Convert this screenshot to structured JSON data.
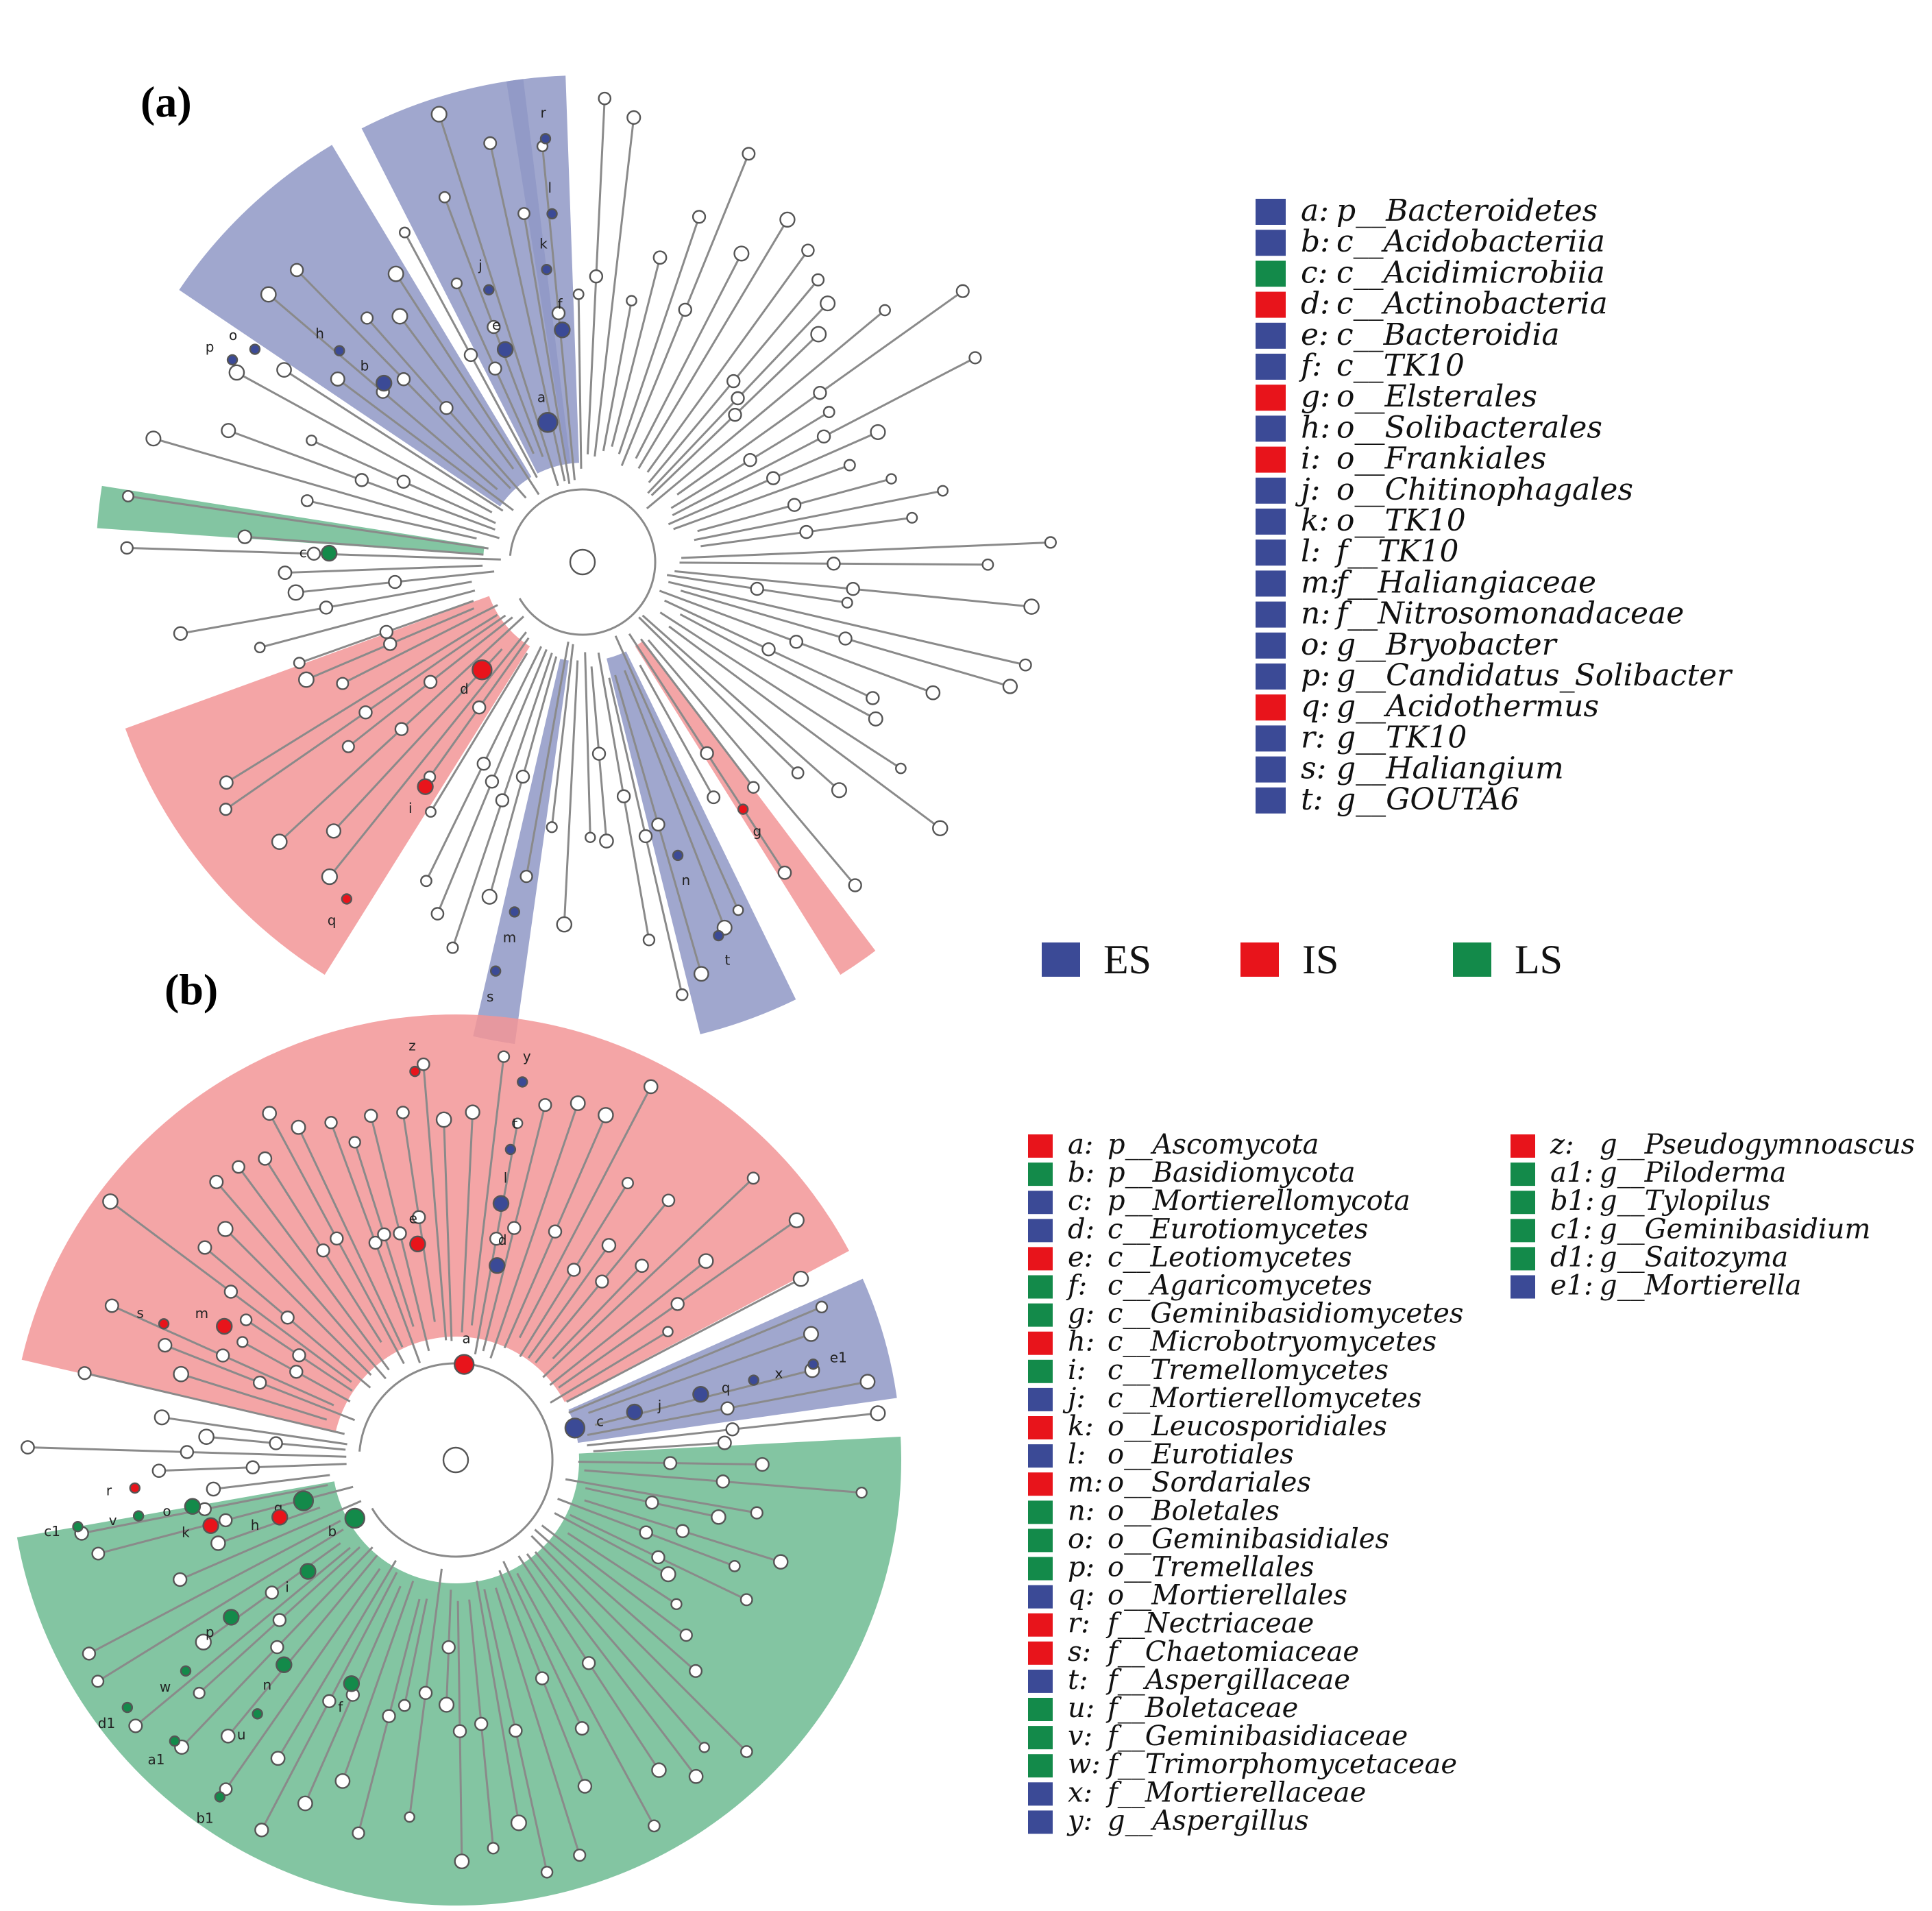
{
  "colors": {
    "ES": "#3b4a96",
    "IS": "#e8141b",
    "LS": "#138a4a"
  },
  "panel_a": {
    "label": "(a)",
    "legend": [
      {
        "key": "a:",
        "name": "p__Bacteroidetes",
        "group": "ES"
      },
      {
        "key": "b:",
        "name": "c__Acidobacteriia",
        "group": "ES"
      },
      {
        "key": "c:",
        "name": "c__Acidimicrobiia",
        "group": "LS"
      },
      {
        "key": "d:",
        "name": "c__Actinobacteria",
        "group": "IS"
      },
      {
        "key": "e:",
        "name": "c__Bacteroidia",
        "group": "ES"
      },
      {
        "key": "f:",
        "name": "c__TK10",
        "group": "ES"
      },
      {
        "key": "g:",
        "name": "o__Elsterales",
        "group": "IS"
      },
      {
        "key": "h:",
        "name": "o__Solibacterales",
        "group": "ES"
      },
      {
        "key": "i:",
        "name": "o__Frankiales",
        "group": "IS"
      },
      {
        "key": "j:",
        "name": "o__Chitinophagales",
        "group": "ES"
      },
      {
        "key": "k:",
        "name": "o__TK10",
        "group": "ES"
      },
      {
        "key": "l:",
        "name": "f__TK10",
        "group": "ES"
      },
      {
        "key": "m:",
        "name": "f__Haliangiaceae",
        "group": "ES"
      },
      {
        "key": "n:",
        "name": "f__Nitrosomonadaceae",
        "group": "ES"
      },
      {
        "key": "o:",
        "name": "g__Bryobacter",
        "group": "ES"
      },
      {
        "key": "p:",
        "name": "g__Candidatus_Solibacter",
        "group": "ES"
      },
      {
        "key": "q:",
        "name": "g__Acidothermus",
        "group": "IS"
      },
      {
        "key": "r:",
        "name": "g__TK10",
        "group": "ES"
      },
      {
        "key": "s:",
        "name": "g__Haliangium",
        "group": "ES"
      },
      {
        "key": "t:",
        "name": "g__GOUTA6",
        "group": "ES"
      }
    ]
  },
  "groups_legend": [
    {
      "name": "ES",
      "group": "ES"
    },
    {
      "name": "IS",
      "group": "IS"
    },
    {
      "name": "LS",
      "group": "LS"
    }
  ],
  "panel_b": {
    "label": "(b)",
    "legend_col1": [
      {
        "key": "a:",
        "name": "p__Ascomycota",
        "group": "IS"
      },
      {
        "key": "b:",
        "name": "p__Basidiomycota",
        "group": "LS"
      },
      {
        "key": "c:",
        "name": "p__Mortierellomycota",
        "group": "ES"
      },
      {
        "key": "d:",
        "name": "c__Eurotiomycetes",
        "group": "ES"
      },
      {
        "key": "e:",
        "name": "c__Leotiomycetes",
        "group": "IS"
      },
      {
        "key": "f:",
        "name": "c__Agaricomycetes",
        "group": "LS"
      },
      {
        "key": "g:",
        "name": "c__Geminibasidiomycetes",
        "group": "LS"
      },
      {
        "key": "h:",
        "name": "c__Microbotryomycetes",
        "group": "IS"
      },
      {
        "key": "i:",
        "name": "c__Tremellomycetes",
        "group": "LS"
      },
      {
        "key": "j:",
        "name": "c__Mortierellomycetes",
        "group": "ES"
      },
      {
        "key": "k:",
        "name": "o__Leucosporidiales",
        "group": "IS"
      },
      {
        "key": "l:",
        "name": "o__Eurotiales",
        "group": "ES"
      },
      {
        "key": "m:",
        "name": "o__Sordariales",
        "group": "IS"
      },
      {
        "key": "n:",
        "name": "o__Boletales",
        "group": "LS"
      },
      {
        "key": "o:",
        "name": "o__Geminibasidiales",
        "group": "LS"
      },
      {
        "key": "p:",
        "name": "o__Tremellales",
        "group": "LS"
      },
      {
        "key": "q:",
        "name": "o__Mortierellales",
        "group": "ES"
      },
      {
        "key": "r:",
        "name": "f__Nectriaceae",
        "group": "IS"
      },
      {
        "key": "s:",
        "name": "f__Chaetomiaceae",
        "group": "IS"
      },
      {
        "key": "t:",
        "name": "f__Aspergillaceae",
        "group": "ES"
      },
      {
        "key": "u:",
        "name": "f__Boletaceae",
        "group": "LS"
      },
      {
        "key": "v:",
        "name": "f__Geminibasidiaceae",
        "group": "LS"
      },
      {
        "key": "w:",
        "name": "f__Trimorphomycetaceae",
        "group": "LS"
      },
      {
        "key": "x:",
        "name": "f__Mortierellaceae",
        "group": "ES"
      },
      {
        "key": "y:",
        "name": "g__Aspergillus",
        "group": "ES"
      }
    ],
    "legend_col2": [
      {
        "key": "z:",
        "name": "g__Pseudogymnoascus",
        "group": "IS"
      },
      {
        "key": "a1:",
        "name": "g__Piloderma",
        "group": "LS"
      },
      {
        "key": "b1:",
        "name": "g__Tylopilus",
        "group": "LS"
      },
      {
        "key": "c1:",
        "name": "g__Geminibasidium",
        "group": "LS"
      },
      {
        "key": "d1:",
        "name": "g__Saitozyma",
        "group": "LS"
      },
      {
        "key": "e1:",
        "name": "g__Mortierella",
        "group": "ES"
      }
    ]
  },
  "tree_a": {
    "sectors": [
      {
        "group": "ES",
        "a1": -121,
        "a2": -146,
        "label": "bh-sector"
      },
      {
        "group": "ES",
        "a1": -97,
        "a2": -117,
        "label": "a-sector"
      },
      {
        "group": "ES",
        "a1": -92,
        "a2": -99,
        "label": "r-sector"
      },
      {
        "group": "LS",
        "a1": -176,
        "a2": -171,
        "label": "c-sector"
      },
      {
        "group": "IS",
        "a1": 122,
        "a2": 160,
        "label": "d-sector"
      },
      {
        "group": "IS",
        "a1": 53,
        "a2": 58,
        "label": "g-sector"
      },
      {
        "group": "ES",
        "a1": 64,
        "a2": 76,
        "label": "n-sector"
      },
      {
        "group": "ES",
        "a1": 98,
        "a2": 103,
        "label": "m-sector"
      }
    ],
    "markers": [
      {
        "key": "a",
        "ang": -104,
        "r": 210,
        "group": "ES"
      },
      {
        "key": "b",
        "ang": -138,
        "r": 390,
        "group": "ES"
      },
      {
        "key": "c",
        "ang": -178,
        "r": 370,
        "group": "LS"
      },
      {
        "key": "d",
        "ang": 133,
        "r": 215,
        "group": "IS"
      },
      {
        "key": "e",
        "ang": -110,
        "r": 330,
        "group": "ES"
      },
      {
        "key": "f",
        "ang": -95,
        "r": 340,
        "group": "ES"
      },
      {
        "key": "g",
        "ang": 57,
        "r": 430,
        "group": "IS"
      },
      {
        "key": "h",
        "ang": -139,
        "r": 470,
        "group": "ES"
      },
      {
        "key": "i",
        "ang": 125,
        "r": 400,
        "group": "IS"
      },
      {
        "key": "j",
        "ang": -109,
        "r": 420,
        "group": "ES"
      },
      {
        "key": "k",
        "ang": -97,
        "r": 430,
        "group": "ES"
      },
      {
        "key": "l",
        "ang": -95,
        "r": 510,
        "group": "ES"
      },
      {
        "key": "m",
        "ang": 101,
        "r": 520,
        "group": "ES"
      },
      {
        "key": "n",
        "ang": 72,
        "r": 450,
        "group": "ES"
      },
      {
        "key": "o",
        "ang": -147,
        "r": 570,
        "group": "ES"
      },
      {
        "key": "p",
        "ang": -150,
        "r": 590,
        "group": "ES"
      },
      {
        "key": "q",
        "ang": 125,
        "r": 600,
        "group": "IS"
      },
      {
        "key": "r",
        "ang": -95,
        "r": 620,
        "group": "ES"
      },
      {
        "key": "s",
        "ang": 102,
        "r": 610,
        "group": "ES"
      },
      {
        "key": "t",
        "ang": 70,
        "r": 580,
        "group": "ES"
      }
    ]
  },
  "tree_b": {
    "sectors": [
      {
        "group": "IS",
        "a1": -167,
        "a2": -28,
        "label": "a-sector"
      },
      {
        "group": "ES",
        "a1": -8,
        "a2": -24,
        "label": "c-sector"
      },
      {
        "group": "LS",
        "a1": -3,
        "a2": 170,
        "label": "b-sector"
      }
    ],
    "markers": [
      {
        "key": "a",
        "ang": -85,
        "r": 140,
        "group": "IS"
      },
      {
        "key": "b",
        "ang": 150,
        "r": 170,
        "group": "LS"
      },
      {
        "key": "c",
        "ang": -15,
        "r": 180,
        "group": "ES"
      },
      {
        "key": "d",
        "ang": -78,
        "r": 290,
        "group": "ES"
      },
      {
        "key": "e",
        "ang": -100,
        "r": 320,
        "group": "IS"
      },
      {
        "key": "f",
        "ang": 115,
        "r": 360,
        "group": "LS"
      },
      {
        "key": "g",
        "ang": 165,
        "r": 230,
        "group": "LS"
      },
      {
        "key": "h",
        "ang": 162,
        "r": 270,
        "group": "IS"
      },
      {
        "key": "i",
        "ang": 143,
        "r": 270,
        "group": "LS"
      },
      {
        "key": "j",
        "ang": -15,
        "r": 270,
        "group": "ES"
      },
      {
        "key": "k",
        "ang": 165,
        "r": 370,
        "group": "IS"
      },
      {
        "key": "l",
        "ang": -80,
        "r": 380,
        "group": "ES"
      },
      {
        "key": "m",
        "ang": -150,
        "r": 390,
        "group": "IS"
      },
      {
        "key": "n",
        "ang": 130,
        "r": 390,
        "group": "LS"
      },
      {
        "key": "o",
        "ang": 170,
        "r": 390,
        "group": "LS"
      },
      {
        "key": "p",
        "ang": 145,
        "r": 400,
        "group": "LS"
      },
      {
        "key": "q",
        "ang": -15,
        "r": 370,
        "group": "ES"
      },
      {
        "key": "r",
        "ang": 175,
        "r": 470,
        "group": "IS"
      },
      {
        "key": "s",
        "ang": -155,
        "r": 470,
        "group": "IS"
      },
      {
        "key": "t",
        "ang": -80,
        "r": 460,
        "group": "ES"
      },
      {
        "key": "u",
        "ang": 128,
        "r": 470,
        "group": "LS"
      },
      {
        "key": "v",
        "ang": 170,
        "r": 470,
        "group": "LS"
      },
      {
        "key": "w",
        "ang": 142,
        "r": 500,
        "group": "LS"
      },
      {
        "key": "x",
        "ang": -15,
        "r": 450,
        "group": "ES"
      },
      {
        "key": "y",
        "ang": -80,
        "r": 560,
        "group": "ES"
      },
      {
        "key": "z",
        "ang": -96,
        "r": 570,
        "group": "IS"
      },
      {
        "key": "a1",
        "ang": 135,
        "r": 580,
        "group": "LS"
      },
      {
        "key": "b1",
        "ang": 125,
        "r": 600,
        "group": "LS"
      },
      {
        "key": "c1",
        "ang": 170,
        "r": 560,
        "group": "LS"
      },
      {
        "key": "d1",
        "ang": 143,
        "r": 600,
        "group": "LS"
      },
      {
        "key": "e1",
        "ang": -15,
        "r": 540,
        "group": "ES"
      }
    ]
  }
}
